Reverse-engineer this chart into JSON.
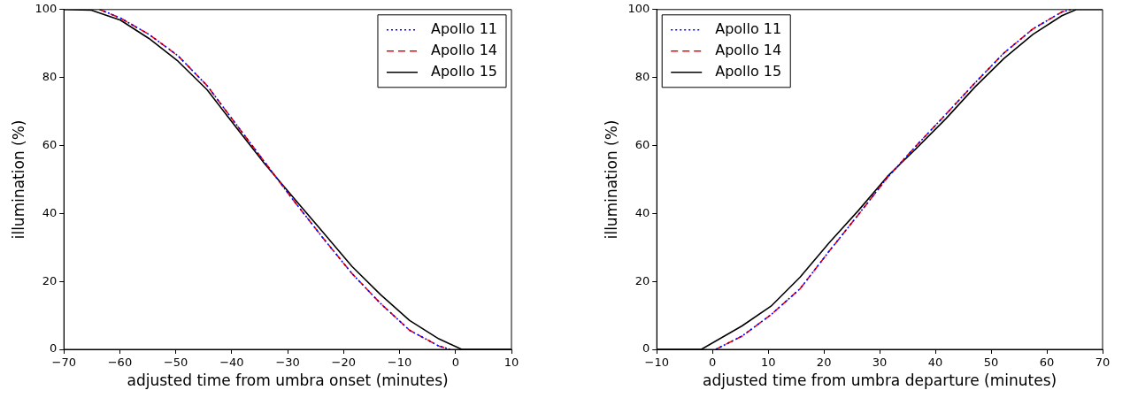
{
  "chart_data": [
    {
      "type": "line",
      "xlabel": "adjusted time from umbra onset (minutes)",
      "ylabel": "illumination (%)",
      "xlim": [
        -70,
        10
      ],
      "xticks": [
        {
          "value": -70,
          "label": "−70"
        },
        {
          "value": -60,
          "label": "−60"
        },
        {
          "value": -50,
          "label": "−50"
        },
        {
          "value": -40,
          "label": "−40"
        },
        {
          "value": -30,
          "label": "−30"
        },
        {
          "value": -20,
          "label": "−20"
        },
        {
          "value": -10,
          "label": "−10"
        },
        0,
        10
      ],
      "ylim": [
        0,
        100
      ],
      "yticks": [
        0,
        20,
        40,
        60,
        80,
        100
      ],
      "grid": false,
      "legend": "top right",
      "marker": "none",
      "series": [
        {
          "name": "Apollo 11",
          "color": "#0000ff",
          "line_style": "dotted",
          "x": [
            -63.6,
            -59.9,
            -54.8,
            -49.6,
            -44.4,
            -39.3,
            -34.1,
            -28.9,
            -23.7,
            -18.5,
            -13.4,
            -8.2,
            -3.0,
            -1.0
          ],
          "values": [
            100,
            97.5,
            92.7,
            86.4,
            77.6,
            66.4,
            55.1,
            43.7,
            32.8,
            22.3,
            13.5,
            5.6,
            1.0,
            0
          ]
        },
        {
          "name": "Apollo 14",
          "color": "#ff0000",
          "line_style": "dashed",
          "x": [
            -63.6,
            -59.9,
            -54.8,
            -49.6,
            -44.4,
            -39.3,
            -34.1,
            -28.9,
            -23.7,
            -18.5,
            -13.4,
            -8.2,
            -3.0,
            -1.0
          ],
          "values": [
            100,
            97.5,
            92.7,
            86.4,
            77.6,
            66.4,
            55.1,
            43.7,
            32.8,
            22.3,
            13.5,
            5.6,
            1.0,
            0
          ]
        },
        {
          "name": "Apollo 15",
          "color": "#000000",
          "line_style": "solid",
          "x": [
            -70,
            -65.1,
            -59.9,
            -54.8,
            -49.6,
            -44.4,
            -39.3,
            -34.1,
            -28.9,
            -23.7,
            -18.5,
            -13.4,
            -8.2,
            -3.0,
            1.1,
            10
          ],
          "values": [
            100,
            99.8,
            96.9,
            91.5,
            84.8,
            76.4,
            65.5,
            54.6,
            44.5,
            34.5,
            24.4,
            16.1,
            8.5,
            3.1,
            0,
            0
          ]
        }
      ]
    },
    {
      "type": "line",
      "xlabel": "adjusted time from umbra departure (minutes)",
      "ylabel": "illumination (%)",
      "xlim": [
        -10,
        70
      ],
      "xticks": [
        {
          "value": -10,
          "label": "−10"
        },
        0,
        10,
        20,
        30,
        40,
        50,
        60,
        70
      ],
      "ylim": [
        0,
        100
      ],
      "yticks": [
        0,
        20,
        40,
        60,
        80,
        100
      ],
      "grid": false,
      "legend": "top left",
      "marker": "none",
      "series": [
        {
          "name": "Apollo 11",
          "color": "#0000ff",
          "line_style": "dotted",
          "x": [
            0.6,
            5.3,
            10.5,
            15.7,
            20.9,
            26.2,
            31.4,
            36.6,
            41.9,
            47.1,
            52.3,
            57.5,
            62.7,
            64.3
          ],
          "values": [
            0,
            3.9,
            10.2,
            17.8,
            28.8,
            39.7,
            50.6,
            60.0,
            69.2,
            78.4,
            87.2,
            94.3,
            99.3,
            100
          ]
        },
        {
          "name": "Apollo 14",
          "color": "#ff0000",
          "line_style": "dashed",
          "x": [
            0.6,
            5.3,
            10.5,
            15.7,
            20.9,
            26.2,
            31.4,
            36.6,
            41.9,
            47.1,
            52.3,
            57.5,
            62.7,
            64.3
          ],
          "values": [
            0,
            3.9,
            10.2,
            17.8,
            28.8,
            39.7,
            50.6,
            60.0,
            69.2,
            78.4,
            87.2,
            94.3,
            99.3,
            100
          ]
        },
        {
          "name": "Apollo 15",
          "color": "#000000",
          "line_style": "solid",
          "x": [
            -10,
            -2.0,
            5.3,
            10.5,
            15.7,
            20.9,
            26.2,
            31.4,
            36.6,
            41.9,
            47.1,
            52.3,
            57.5,
            62.7,
            65.3,
            70
          ],
          "values": [
            0,
            0,
            6.9,
            12.7,
            21.2,
            31.3,
            40.9,
            50.9,
            59.2,
            67.9,
            77.2,
            85.6,
            92.7,
            98.2,
            100,
            100
          ]
        }
      ]
    }
  ]
}
